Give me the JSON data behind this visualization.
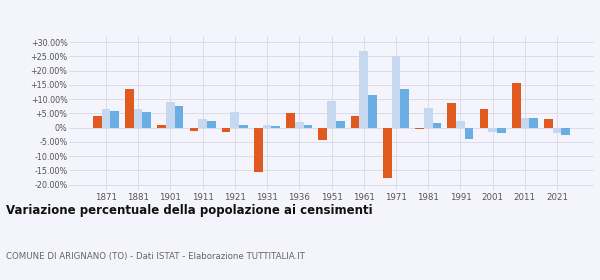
{
  "years": [
    1871,
    1881,
    1901,
    1911,
    1921,
    1931,
    1936,
    1951,
    1961,
    1971,
    1981,
    1991,
    2001,
    2011,
    2021
  ],
  "arignano": [
    4.0,
    13.5,
    1.0,
    -1.0,
    -1.5,
    -15.5,
    5.0,
    -4.5,
    4.2,
    -17.5,
    -0.5,
    8.5,
    6.5,
    15.5,
    3.0
  ],
  "provincia_to": [
    6.5,
    6.5,
    9.0,
    3.0,
    5.5,
    1.0,
    2.0,
    9.5,
    27.0,
    25.0,
    7.0,
    2.5,
    -1.5,
    3.5,
    -2.0
  ],
  "piemonte": [
    6.0,
    5.5,
    7.5,
    2.5,
    1.0,
    0.5,
    1.0,
    2.5,
    11.5,
    13.5,
    1.5,
    -4.0,
    -2.0,
    3.5,
    -2.5
  ],
  "color_arignano": "#e05a20",
  "color_provincia": "#c5d8f0",
  "color_piemonte": "#6aade4",
  "title": "Variazione percentuale della popolazione ai censimenti",
  "subtitle": "COMUNE DI ARIGNANO (TO) - Dati ISTAT - Elaborazione TUTTITALIA.IT",
  "yticks": [
    -20,
    -15,
    -10,
    -5,
    0,
    5,
    10,
    15,
    20,
    25,
    30
  ],
  "ylim": [
    -22,
    32
  ],
  "background_color": "#f4f4fc",
  "grid_color": "#d8d8e8"
}
